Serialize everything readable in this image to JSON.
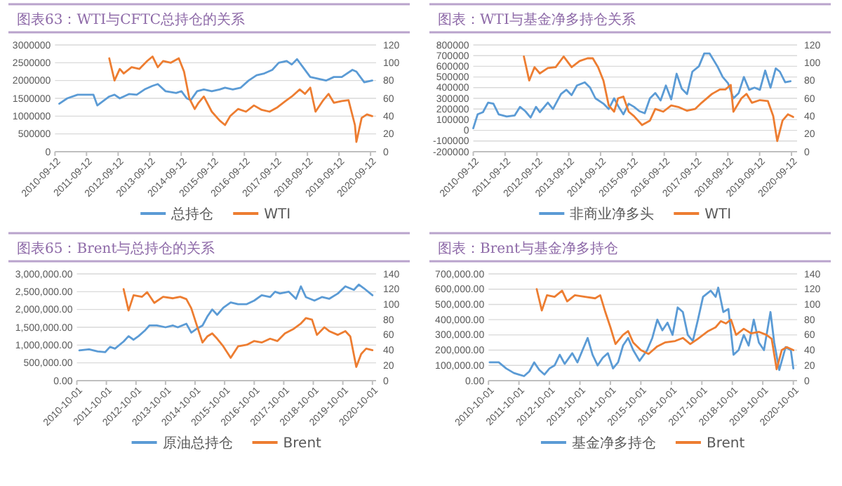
{
  "chart_data": [
    {
      "type": "line",
      "title": "图表63：WTI与CFTC总持仓的关系",
      "grid": "y",
      "legend": "bottom",
      "xlim": [
        "2010-09-12",
        "2020-11-15"
      ],
      "xticks": [
        "2010-09-12",
        "2011-09-12",
        "2012-09-12",
        "2013-09-12",
        "2014-09-12",
        "2015-09-12",
        "2016-09-12",
        "2017-09-12",
        "2018-09-12",
        "2019-09-12",
        "2020-09-12"
      ],
      "ylim": [
        0,
        3000000
      ],
      "yticks": [
        0,
        500000,
        1000000,
        1500000,
        2000000,
        2500000,
        3000000
      ],
      "y2lim": [
        0,
        120
      ],
      "y2ticks": [
        0,
        20,
        40,
        60,
        80,
        100,
        120
      ],
      "series": [
        {
          "name": "总持仓",
          "color": "#5b9bd5",
          "axis": "y",
          "x": [
            "2010-11-01",
            "2011-02-01",
            "2011-06-01",
            "2011-12-01",
            "2012-01-15",
            "2012-06-01",
            "2012-08-01",
            "2012-10-01",
            "2013-01-15",
            "2013-04-15",
            "2013-07-15",
            "2013-10-15",
            "2013-12-15",
            "2014-03-15",
            "2014-07-15",
            "2014-09-15",
            "2014-11-15",
            "2015-01-01",
            "2015-03-15",
            "2015-06-01",
            "2015-09-01",
            "2015-12-01",
            "2016-02-01",
            "2016-05-01",
            "2016-08-01",
            "2016-11-01",
            "2017-02-01",
            "2017-05-01",
            "2017-08-01",
            "2017-10-15",
            "2018-01-15",
            "2018-03-15",
            "2018-05-15",
            "2018-07-15",
            "2018-10-15",
            "2019-01-15",
            "2019-04-15",
            "2019-07-15",
            "2019-10-15",
            "2020-02-15",
            "2020-04-01",
            "2020-07-01",
            "2020-10-01"
          ],
          "values": [
            1350000,
            1500000,
            1600000,
            1600000,
            1300000,
            1550000,
            1600000,
            1500000,
            1620000,
            1600000,
            1750000,
            1850000,
            1900000,
            1700000,
            1650000,
            1700000,
            1500000,
            1450000,
            1700000,
            1750000,
            1700000,
            1750000,
            1800000,
            1750000,
            1800000,
            2000000,
            2150000,
            2200000,
            2300000,
            2500000,
            2550000,
            2450000,
            2600000,
            2400000,
            2100000,
            2050000,
            2000000,
            2100000,
            2100000,
            2300000,
            2250000,
            1950000,
            2000000
          ]
        },
        {
          "name": "WTI",
          "color": "#ed7d31",
          "axis": "y2",
          "x": [
            "2012-06-01",
            "2012-08-01",
            "2012-10-01",
            "2012-11-15",
            "2013-02-15",
            "2013-05-15",
            "2013-08-15",
            "2013-10-15",
            "2013-12-15",
            "2014-02-15",
            "2014-05-15",
            "2014-08-15",
            "2014-10-15",
            "2014-12-15",
            "2015-02-15",
            "2015-04-01",
            "2015-06-01",
            "2015-09-01",
            "2015-12-01",
            "2016-02-01",
            "2016-04-01",
            "2016-07-01",
            "2016-10-01",
            "2017-01-01",
            "2017-04-01",
            "2017-07-01",
            "2017-10-01",
            "2018-01-01",
            "2018-03-15",
            "2018-06-15",
            "2018-08-15",
            "2018-10-15",
            "2018-12-15",
            "2019-03-15",
            "2019-05-15",
            "2019-07-15",
            "2019-10-15",
            "2020-01-01",
            "2020-03-15",
            "2020-04-01",
            "2020-06-01",
            "2020-08-01",
            "2020-10-01"
          ],
          "values": [
            105,
            80,
            93,
            88,
            95,
            93,
            102,
            107,
            95,
            102,
            100,
            105,
            90,
            60,
            48,
            55,
            62,
            45,
            35,
            30,
            40,
            48,
            45,
            52,
            47,
            45,
            50,
            57,
            62,
            70,
            65,
            72,
            45,
            58,
            65,
            55,
            57,
            58,
            30,
            11,
            38,
            42,
            40
          ]
        }
      ]
    },
    {
      "type": "line",
      "title": "图表：WTI与基金净多持仓关系",
      "grid": "y",
      "legend": "bottom",
      "xlim": [
        "2010-09-12",
        "2020-11-15"
      ],
      "xticks": [
        "2010-09-12",
        "2011-09-12",
        "2012-09-12",
        "2013-09-12",
        "2014-09-12",
        "2015-09-12",
        "2016-09-12",
        "2017-09-12",
        "2018-09-12",
        "2019-09-12",
        "2020-09-12"
      ],
      "ylim": [
        -200000,
        800000
      ],
      "yticks": [
        -200000,
        -100000,
        0,
        100000,
        200000,
        300000,
        400000,
        500000,
        600000,
        700000,
        800000
      ],
      "y2lim": [
        0,
        120
      ],
      "y2ticks": [
        0,
        20,
        40,
        60,
        80,
        100,
        120
      ],
      "series": [
        {
          "name": "非商业净多头",
          "color": "#5b9bd5",
          "axis": "y",
          "x": [
            "2010-09-12",
            "2010-11-01",
            "2011-01-01",
            "2011-03-01",
            "2011-05-01",
            "2011-07-01",
            "2011-10-01",
            "2012-01-01",
            "2012-03-01",
            "2012-05-01",
            "2012-07-01",
            "2012-09-01",
            "2012-10-15",
            "2013-01-15",
            "2013-03-15",
            "2013-06-15",
            "2013-08-15",
            "2013-10-15",
            "2013-12-15",
            "2014-03-15",
            "2014-05-15",
            "2014-07-15",
            "2014-10-15",
            "2014-12-15",
            "2015-02-15",
            "2015-04-01",
            "2015-06-01",
            "2015-08-01",
            "2015-10-01",
            "2015-12-01",
            "2016-02-01",
            "2016-04-01",
            "2016-06-01",
            "2016-08-01",
            "2016-10-01",
            "2016-12-01",
            "2017-02-01",
            "2017-04-01",
            "2017-06-01",
            "2017-08-01",
            "2017-10-15",
            "2017-12-15",
            "2018-02-15",
            "2018-05-15",
            "2018-07-15",
            "2018-09-15",
            "2018-11-15",
            "2019-01-15",
            "2019-03-15",
            "2019-05-15",
            "2019-07-15",
            "2019-09-15",
            "2019-11-15",
            "2020-01-15",
            "2020-03-15",
            "2020-05-01",
            "2020-07-01",
            "2020-09-01"
          ],
          "values": [
            20000,
            150000,
            170000,
            260000,
            250000,
            150000,
            130000,
            140000,
            220000,
            180000,
            120000,
            220000,
            170000,
            260000,
            200000,
            340000,
            380000,
            330000,
            420000,
            450000,
            400000,
            300000,
            250000,
            200000,
            300000,
            230000,
            150000,
            250000,
            220000,
            180000,
            160000,
            300000,
            350000,
            280000,
            420000,
            290000,
            530000,
            390000,
            340000,
            550000,
            600000,
            720000,
            720000,
            600000,
            500000,
            440000,
            300000,
            350000,
            500000,
            380000,
            400000,
            380000,
            560000,
            400000,
            580000,
            550000,
            450000,
            460000
          ]
        },
        {
          "name": "WTI",
          "color": "#ed7d31",
          "axis": "y2",
          "x": [
            "2012-04-15",
            "2012-06-15",
            "2012-08-15",
            "2012-10-15",
            "2013-01-15",
            "2013-04-15",
            "2013-07-15",
            "2013-10-15",
            "2014-01-15",
            "2014-04-15",
            "2014-06-15",
            "2014-08-15",
            "2014-10-15",
            "2014-12-15",
            "2015-02-15",
            "2015-04-01",
            "2015-06-01",
            "2015-08-01",
            "2015-10-01",
            "2016-01-01",
            "2016-04-01",
            "2016-06-01",
            "2016-09-01",
            "2016-12-01",
            "2017-03-01",
            "2017-06-01",
            "2017-09-01",
            "2017-11-15",
            "2018-03-15",
            "2018-06-15",
            "2018-08-15",
            "2018-10-15",
            "2018-11-15",
            "2019-02-15",
            "2019-04-15",
            "2019-06-15",
            "2019-09-15",
            "2019-12-15",
            "2020-02-15",
            "2020-04-01",
            "2020-06-01",
            "2020-08-01",
            "2020-10-01"
          ],
          "values": [
            107,
            80,
            95,
            88,
            94,
            95,
            107,
            95,
            102,
            105,
            105,
            95,
            80,
            52,
            45,
            60,
            62,
            45,
            40,
            30,
            35,
            48,
            45,
            52,
            50,
            46,
            48,
            55,
            65,
            70,
            70,
            75,
            45,
            60,
            65,
            55,
            58,
            57,
            40,
            12,
            35,
            42,
            39
          ]
        }
      ]
    },
    {
      "type": "line",
      "title": "图表65：Brent与总持仓的关系",
      "grid": "y",
      "legend": "bottom",
      "xlim": [
        "2010-10-01",
        "2020-11-15"
      ],
      "xticks": [
        "2010-10-01",
        "2011-10-01",
        "2012-10-01",
        "2013-10-01",
        "2014-10-01",
        "2015-10-01",
        "2016-10-01",
        "2017-10-01",
        "2018-10-01",
        "2019-10-01",
        "2020-10-01"
      ],
      "ylim": [
        0,
        3000000
      ],
      "yticks": [
        {
          "value": 0,
          "label": "0.00"
        },
        {
          "value": 500000,
          "label": "500,000.00"
        },
        {
          "value": 1000000,
          "label": "1,000,000.00"
        },
        {
          "value": 1500000,
          "label": "1,500,000.00"
        },
        {
          "value": 2000000,
          "label": "2,000,000.00"
        },
        {
          "value": 2500000,
          "label": "2,500,000.00"
        },
        {
          "value": 3000000,
          "label": "3,000,000.00"
        }
      ],
      "y2lim": [
        0,
        140
      ],
      "y2ticks": [
        0,
        20,
        40,
        60,
        80,
        100,
        120,
        140
      ],
      "series": [
        {
          "name": "原油总持仓",
          "color": "#5b9bd5",
          "axis": "y",
          "x": [
            "2010-11-01",
            "2011-03-01",
            "2011-06-15",
            "2011-09-15",
            "2011-11-15",
            "2012-01-15",
            "2012-05-01",
            "2012-07-01",
            "2012-09-01",
            "2012-11-01",
            "2013-01-15",
            "2013-03-15",
            "2013-06-15",
            "2013-10-01",
            "2014-01-01",
            "2014-03-01",
            "2014-06-15",
            "2014-08-15",
            "2014-10-15",
            "2015-01-01",
            "2015-03-01",
            "2015-05-01",
            "2015-07-01",
            "2015-09-15",
            "2015-12-15",
            "2016-03-15",
            "2016-07-01",
            "2016-10-01",
            "2017-01-01",
            "2017-04-15",
            "2017-06-15",
            "2017-08-15",
            "2017-12-01",
            "2018-03-01",
            "2018-05-01",
            "2018-07-01",
            "2018-10-15",
            "2019-01-15",
            "2019-04-15",
            "2019-08-01",
            "2019-11-01",
            "2020-02-15",
            "2020-04-15",
            "2020-06-15",
            "2020-10-01"
          ],
          "values": [
            850000,
            880000,
            820000,
            800000,
            950000,
            900000,
            1100000,
            1250000,
            1150000,
            1250000,
            1400000,
            1550000,
            1550000,
            1500000,
            1550000,
            1500000,
            1600000,
            1350000,
            1450000,
            1550000,
            1800000,
            2000000,
            1850000,
            2050000,
            2200000,
            2150000,
            2150000,
            2250000,
            2400000,
            2350000,
            2500000,
            2450000,
            2500000,
            2300000,
            2650000,
            2350000,
            2250000,
            2350000,
            2300000,
            2450000,
            2650000,
            2550000,
            2700000,
            2600000,
            2400000
          ]
        },
        {
          "name": "Brent",
          "color": "#ed7d31",
          "axis": "y2",
          "x": [
            "2012-05-01",
            "2012-07-01",
            "2012-09-01",
            "2012-12-15",
            "2013-02-15",
            "2013-05-15",
            "2013-09-01",
            "2014-01-01",
            "2014-04-01",
            "2014-06-15",
            "2014-08-15",
            "2014-10-15",
            "2015-01-01",
            "2015-03-01",
            "2015-05-01",
            "2015-07-01",
            "2015-09-15",
            "2015-12-15",
            "2016-03-15",
            "2016-07-01",
            "2016-10-01",
            "2017-01-01",
            "2017-04-15",
            "2017-07-15",
            "2017-10-15",
            "2018-02-01",
            "2018-05-01",
            "2018-07-01",
            "2018-09-15",
            "2018-11-15",
            "2019-02-15",
            "2019-04-15",
            "2019-08-01",
            "2019-11-01",
            "2020-01-01",
            "2020-03-15",
            "2020-05-15",
            "2020-07-15",
            "2020-10-01"
          ],
          "values": [
            120,
            92,
            112,
            110,
            116,
            102,
            110,
            108,
            110,
            107,
            95,
            75,
            50,
            58,
            62,
            55,
            45,
            30,
            45,
            47,
            52,
            50,
            55,
            52,
            62,
            68,
            75,
            82,
            80,
            60,
            70,
            65,
            60,
            65,
            58,
            18,
            35,
            42,
            40
          ]
        }
      ]
    },
    {
      "type": "line",
      "title": "图表：Brent与基金净多持仓",
      "grid": "y",
      "legend": "bottom",
      "xlim": [
        "2010-10-01",
        "2020-11-15"
      ],
      "xticks": [
        "2010-10-01",
        "2011-10-01",
        "2012-10-01",
        "2013-10-01",
        "2014-10-01",
        "2015-10-01",
        "2016-10-01",
        "2017-10-01",
        "2018-10-01",
        "2019-10-01",
        "2020-10-01"
      ],
      "ylim": [
        0,
        700000
      ],
      "yticks": [
        {
          "value": 0,
          "label": "0.00"
        },
        {
          "value": 100000,
          "label": "100,000.00"
        },
        {
          "value": 200000,
          "label": "200,000.00"
        },
        {
          "value": 300000,
          "label": "300,000.00"
        },
        {
          "value": 400000,
          "label": "400,000.00"
        },
        {
          "value": 500000,
          "label": "500,000.00"
        },
        {
          "value": 600000,
          "label": "600,000.00"
        },
        {
          "value": 700000,
          "label": "700,000.00"
        }
      ],
      "y2lim": [
        0,
        140
      ],
      "y2ticks": [
        0,
        20,
        40,
        60,
        80,
        100,
        120,
        140
      ],
      "series": [
        {
          "name": "基金净多持仓",
          "color": "#5b9bd5",
          "axis": "y",
          "x": [
            "2010-10-15",
            "2011-02-01",
            "2011-05-01",
            "2011-08-01",
            "2011-10-01",
            "2011-12-01",
            "2012-02-01",
            "2012-04-01",
            "2012-06-01",
            "2012-08-01",
            "2012-10-01",
            "2012-12-01",
            "2013-02-01",
            "2013-04-01",
            "2013-07-01",
            "2013-09-01",
            "2013-11-01",
            "2014-01-01",
            "2014-03-01",
            "2014-05-01",
            "2014-07-01",
            "2014-09-01",
            "2014-11-01",
            "2015-01-01",
            "2015-03-01",
            "2015-05-01",
            "2015-07-01",
            "2015-09-15",
            "2015-12-15",
            "2016-02-15",
            "2016-04-15",
            "2016-06-15",
            "2016-08-15",
            "2016-10-15",
            "2016-12-15",
            "2017-02-15",
            "2017-04-15",
            "2017-06-15",
            "2017-08-15",
            "2017-10-15",
            "2018-01-15",
            "2018-03-15",
            "2018-04-15",
            "2018-06-15",
            "2018-08-15",
            "2018-10-15",
            "2018-12-15",
            "2019-02-15",
            "2019-04-15",
            "2019-06-15",
            "2019-08-15",
            "2019-10-15",
            "2020-01-01",
            "2020-02-15",
            "2020-04-15",
            "2020-07-01",
            "2020-09-01",
            "2020-10-01"
          ],
          "values": [
            120000,
            120000,
            80000,
            50000,
            40000,
            30000,
            60000,
            120000,
            70000,
            40000,
            80000,
            100000,
            170000,
            110000,
            180000,
            120000,
            200000,
            280000,
            170000,
            100000,
            150000,
            180000,
            80000,
            120000,
            230000,
            280000,
            200000,
            130000,
            200000,
            280000,
            400000,
            330000,
            380000,
            300000,
            480000,
            450000,
            300000,
            260000,
            400000,
            550000,
            590000,
            550000,
            610000,
            450000,
            470000,
            170000,
            200000,
            300000,
            230000,
            400000,
            250000,
            200000,
            450000,
            250000,
            70000,
            220000,
            200000,
            80000
          ]
        },
        {
          "name": "Brent",
          "color": "#ed7d31",
          "axis": "y2",
          "x": [
            "2012-05-01",
            "2012-07-01",
            "2012-09-01",
            "2012-12-01",
            "2013-03-01",
            "2013-05-01",
            "2013-08-01",
            "2013-12-01",
            "2014-04-01",
            "2014-06-01",
            "2014-08-01",
            "2014-10-01",
            "2014-12-01",
            "2015-03-01",
            "2015-05-01",
            "2015-07-01",
            "2015-10-01",
            "2016-01-01",
            "2016-04-15",
            "2016-07-15",
            "2016-11-15",
            "2017-02-15",
            "2017-05-15",
            "2017-08-15",
            "2017-12-15",
            "2018-03-15",
            "2018-05-15",
            "2018-07-15",
            "2018-09-15",
            "2018-11-15",
            "2019-02-15",
            "2019-05-15",
            "2019-08-15",
            "2019-11-15",
            "2020-01-15",
            "2020-03-15",
            "2020-05-15",
            "2020-07-15",
            "2020-10-01"
          ],
          "values": [
            120,
            92,
            112,
            110,
            118,
            104,
            112,
            110,
            108,
            112,
            90,
            70,
            48,
            60,
            65,
            50,
            40,
            35,
            45,
            50,
            52,
            56,
            48,
            55,
            65,
            70,
            78,
            75,
            80,
            60,
            68,
            62,
            64,
            60,
            55,
            15,
            40,
            44,
            40
          ]
        }
      ]
    }
  ]
}
